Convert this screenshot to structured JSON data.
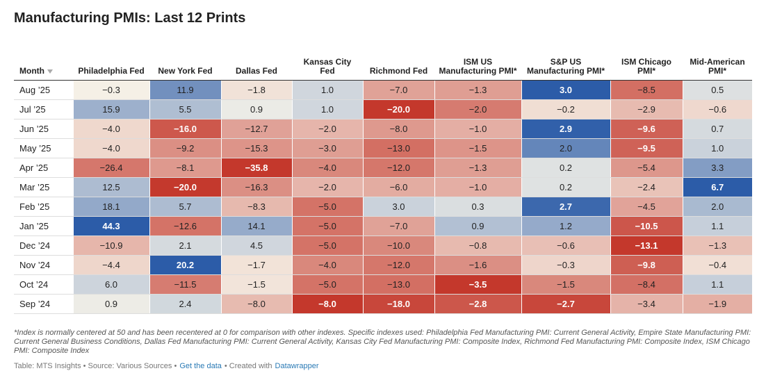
{
  "header": {
    "title": "Manufacturing PMIs: Last 12 Prints"
  },
  "table": {
    "columns": [
      "Month",
      "Philadelphia Fed",
      "New York Fed",
      "Dallas Fed",
      "Kansas City Fed",
      "Richmond Fed",
      "ISM US Manufacturing PMI*",
      "S&P US Manufacturing PMI*",
      "ISM Chicago PMI*",
      "Mid-American PMI*"
    ],
    "rows": [
      [
        "Aug ’25",
        "−0.3",
        "11.9",
        "−1.8",
        "1.0",
        "−7.0",
        "−1.3",
        "3.0",
        "−8.5",
        "0.5"
      ],
      [
        "Jul ’25",
        "15.9",
        "5.5",
        "0.9",
        "1.0",
        "−20.0",
        "−2.0",
        "−0.2",
        "−2.9",
        "−0.6"
      ],
      [
        "Jun ’25",
        "−4.0",
        "−16.0",
        "−12.7",
        "−2.0",
        "−8.0",
        "−1.0",
        "2.9",
        "−9.6",
        "0.7"
      ],
      [
        "May ’25",
        "−4.0",
        "−9.2",
        "−15.3",
        "−3.0",
        "−13.0",
        "−1.5",
        "2.0",
        "−9.5",
        "1.0"
      ],
      [
        "Apr ’25",
        "−26.4",
        "−8.1",
        "−35.8",
        "−4.0",
        "−12.0",
        "−1.3",
        "0.2",
        "−5.4",
        "3.3"
      ],
      [
        "Mar ’25",
        "12.5",
        "−20.0",
        "−16.3",
        "−2.0",
        "−6.0",
        "−1.0",
        "0.2",
        "−2.4",
        "6.7"
      ],
      [
        "Feb ’25",
        "18.1",
        "5.7",
        "−8.3",
        "−5.0",
        "3.0",
        "0.3",
        "2.7",
        "−4.5",
        "2.0"
      ],
      [
        "Jan ’25",
        "44.3",
        "−12.6",
        "14.1",
        "−5.0",
        "−7.0",
        "0.9",
        "1.2",
        "−10.5",
        "1.1"
      ],
      [
        "Dec ’24",
        "−10.9",
        "2.1",
        "4.5",
        "−5.0",
        "−10.0",
        "−0.8",
        "−0.6",
        "−13.1",
        "−1.3"
      ],
      [
        "Nov ’24",
        "−4.4",
        "20.2",
        "−1.7",
        "−4.0",
        "−12.0",
        "−1.6",
        "−0.3",
        "−9.8",
        "−0.4"
      ],
      [
        "Oct ’24",
        "6.0",
        "−11.5",
        "−1.5",
        "−5.0",
        "−13.0",
        "−3.5",
        "−1.5",
        "−8.4",
        "1.1"
      ],
      [
        "Sep ’24",
        "0.9",
        "2.4",
        "−8.0",
        "−8.0",
        "−18.0",
        "−2.8",
        "−2.7",
        "−3.4",
        "−1.9"
      ]
    ]
  },
  "footer": {
    "note": "*Index is normally centered at 50 and has been recentered at 0 for comparison with other indexes. Specific indexes used: Philadelphia Fed Manufacturing PMI: Current General Activity, Empire State Manufacturing PMI: Current General Business Conditions, Dallas Fed Manufacturing PMI: Current General Activity, Kansas City Fed Manufacturing PMI: Composite Index, Richmond Fed Manufacturing PMI: Composite Index, ISM Chicago PMI: Composite Index",
    "byline": "Table: MTS Insights • Source: Various Sources •",
    "data_link": "Get the data",
    "created": "• Created with",
    "tool_link": "Datawrapper"
  }
}
